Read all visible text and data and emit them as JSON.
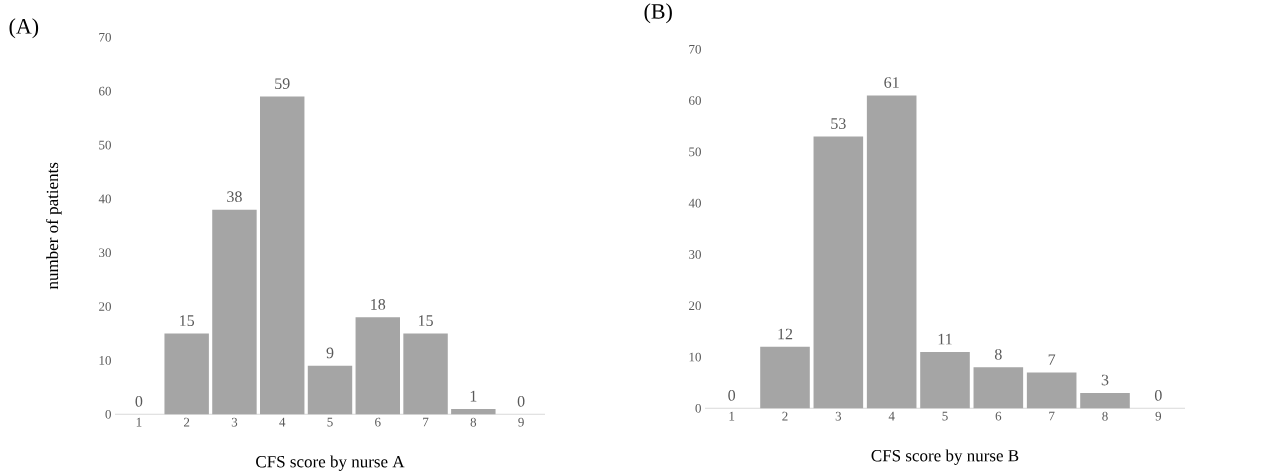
{
  "chart_data": [
    {
      "type": "bar",
      "title": "(A)",
      "xlabel": "CFS score by nurse A",
      "ylabel": "number of patients",
      "categories": [
        "1",
        "2",
        "3",
        "4",
        "5",
        "6",
        "7",
        "8",
        "9"
      ],
      "values": [
        0,
        15,
        38,
        59,
        9,
        18,
        15,
        1,
        0
      ],
      "color": "#a5a5a5",
      "ylim": [
        0,
        70
      ],
      "yticks": [
        0,
        10,
        20,
        30,
        40,
        50,
        60,
        70
      ],
      "data_labels": true
    },
    {
      "type": "bar",
      "title": "(B)",
      "xlabel": "CFS score by nurse B",
      "categories": [
        "1",
        "2",
        "3",
        "4",
        "5",
        "6",
        "7",
        "8",
        "9"
      ],
      "values": [
        0,
        12,
        53,
        61,
        11,
        8,
        7,
        3,
        0
      ],
      "color": "#a5a5a5",
      "ylim": [
        0,
        70
      ],
      "yticks": [
        0,
        10,
        20,
        30,
        40,
        50,
        60,
        70
      ],
      "data_labels": true
    }
  ]
}
